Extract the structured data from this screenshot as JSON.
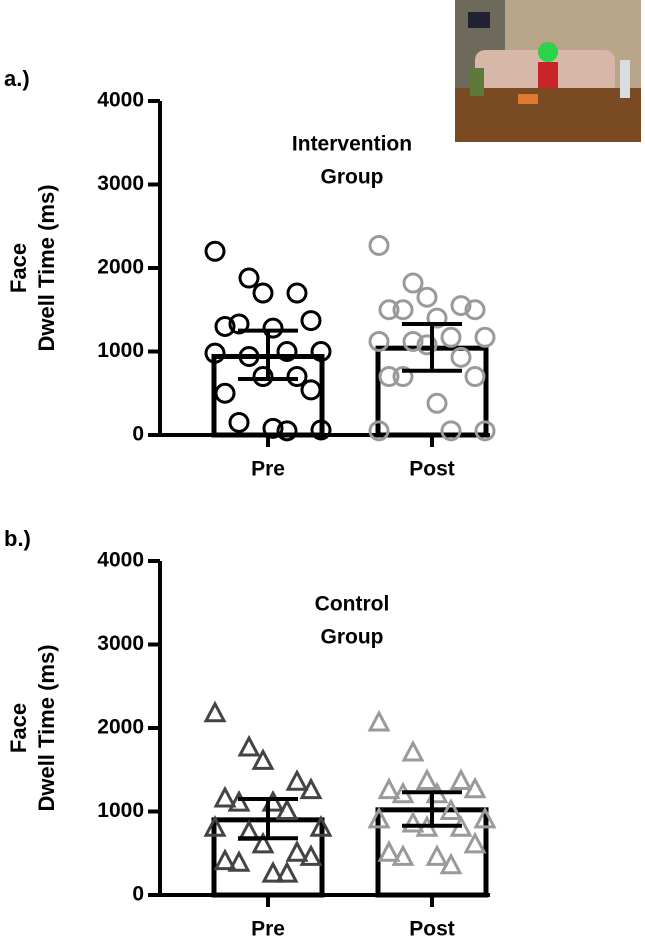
{
  "chart_data": [
    {
      "type": "bar",
      "panel": "a.)",
      "title": [
        "Intervention",
        "Group"
      ],
      "ylabel": [
        "Face",
        "Dwell Time (ms)"
      ],
      "categories": [
        "Pre",
        "Post"
      ],
      "values": [
        940,
        1040
      ],
      "ci": [
        [
          670,
          1250
        ],
        [
          770,
          1330
        ]
      ],
      "marker": "circle",
      "point_colors": [
        "#000000",
        "#9a9a9a"
      ],
      "points": [
        [
          2200,
          1880,
          1700,
          1700,
          1370,
          1300,
          1330,
          1280,
          1000,
          1000,
          980,
          940,
          700,
          700,
          540,
          500,
          150,
          80,
          50,
          60
        ],
        [
          2270,
          1820,
          1650,
          1550,
          1500,
          1500,
          1500,
          1400,
          1170,
          1170,
          1120,
          1120,
          1080,
          930,
          700,
          700,
          700,
          380,
          50,
          50,
          50
        ]
      ],
      "ylim": [
        0,
        4000
      ],
      "yticks": [
        0,
        1000,
        2000,
        3000,
        4000
      ]
    },
    {
      "type": "bar",
      "panel": "b.)",
      "title": [
        "Control",
        "Group"
      ],
      "ylabel": [
        "Face",
        "Dwell Time (ms)"
      ],
      "categories": [
        "Pre",
        "Post"
      ],
      "values": [
        900,
        1020
      ],
      "ci": [
        [
          680,
          1150
        ],
        [
          830,
          1230
        ]
      ],
      "marker": "triangle",
      "point_colors": [
        "#444444",
        "#9a9a9a"
      ],
      "points": [
        [
          2170,
          1760,
          1600,
          1350,
          1250,
          1150,
          1100,
          1100,
          1000,
          800,
          800,
          750,
          600,
          500,
          450,
          400,
          380,
          250,
          250
        ],
        [
          2060,
          1700,
          1360,
          1360,
          1260,
          1250,
          1200,
          1200,
          1000,
          900,
          900,
          850,
          800,
          800,
          600,
          500,
          450,
          450,
          350
        ]
      ],
      "ylim": [
        0,
        4000
      ],
      "yticks": [
        0,
        1000,
        2000,
        3000,
        4000
      ]
    }
  ]
}
